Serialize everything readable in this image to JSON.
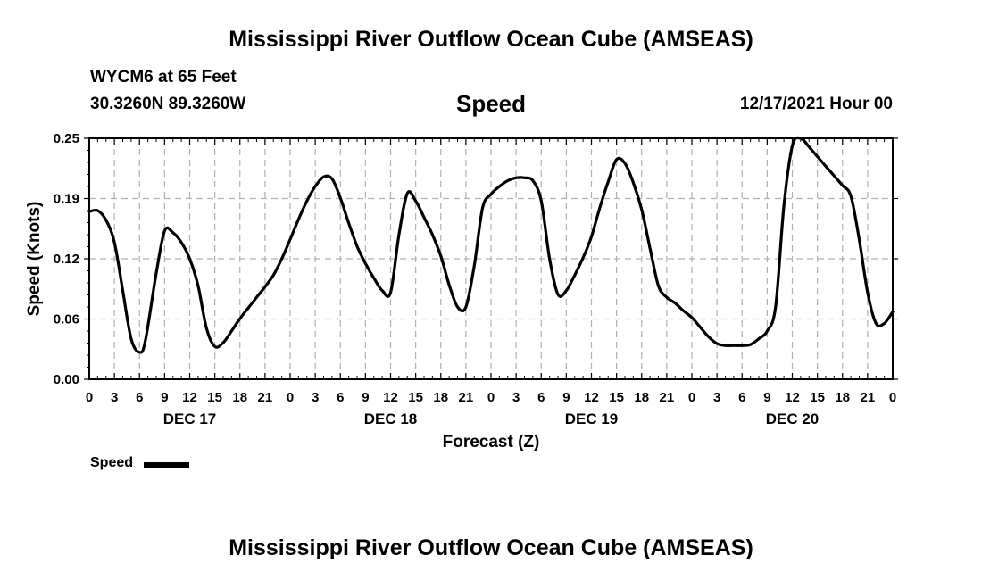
{
  "header": {
    "title": "Mississippi River Outflow Ocean Cube (AMSEAS)",
    "station": "WYCM6 at 65 Feet",
    "coords": "30.3260N  89.3260W",
    "panel_title": "Speed",
    "run_time": "12/17/2021 Hour 00"
  },
  "footer": {
    "title": "Mississippi River Outflow Ocean Cube (AMSEAS)"
  },
  "legend": {
    "label": "Speed",
    "color": "#000000"
  },
  "chart_data": {
    "type": "line",
    "ylabel": "Speed (Knots)",
    "xlabel": "Forecast (Z)",
    "ylim": [
      0,
      0.25
    ],
    "yticks": [
      "0.00",
      "0.06",
      "0.12",
      "0.19",
      "0.25"
    ],
    "xlim_hours": [
      0,
      96
    ],
    "xtick_labels": [
      "0",
      "3",
      "6",
      "9",
      "12",
      "15",
      "18",
      "21",
      "0",
      "3",
      "6",
      "9",
      "12",
      "15",
      "18",
      "21",
      "0",
      "3",
      "6",
      "9",
      "12",
      "15",
      "18",
      "21",
      "0",
      "3",
      "6",
      "9",
      "12",
      "15",
      "18",
      "21",
      "0"
    ],
    "day_labels": [
      {
        "label": "DEC 17",
        "hour": 12
      },
      {
        "label": "DEC 18",
        "hour": 36
      },
      {
        "label": "DEC 19",
        "hour": 60
      },
      {
        "label": "DEC 20",
        "hour": 84
      }
    ],
    "grid": true,
    "line_color": "#000000",
    "series": [
      {
        "name": "Speed",
        "x": [
          0,
          1,
          2,
          3,
          4,
          5,
          6,
          6.7,
          8,
          9,
          10,
          11,
          12,
          13,
          14,
          15,
          16,
          17,
          18,
          19,
          20,
          21,
          22,
          23,
          24,
          25,
          26,
          27,
          28,
          29,
          30,
          31,
          32,
          33,
          34,
          35,
          36,
          37,
          38,
          39,
          40,
          41,
          42,
          43,
          44,
          45,
          46,
          47,
          48,
          49,
          50,
          51,
          52,
          53,
          54,
          55,
          56,
          57,
          58,
          59,
          60,
          61,
          62,
          63,
          64,
          65,
          66,
          67,
          68,
          69,
          70,
          71,
          72,
          73,
          74,
          75,
          76,
          77,
          78,
          79,
          80,
          81,
          82,
          83,
          84,
          85,
          86,
          87,
          88,
          89,
          90,
          91,
          92,
          93,
          94,
          95,
          96
        ],
        "y": [
          0.174,
          0.175,
          0.165,
          0.142,
          0.092,
          0.042,
          0.028,
          0.04,
          0.11,
          0.154,
          0.152,
          0.142,
          0.125,
          0.097,
          0.053,
          0.034,
          0.038,
          0.05,
          0.063,
          0.074,
          0.085,
          0.096,
          0.108,
          0.125,
          0.145,
          0.166,
          0.185,
          0.2,
          0.21,
          0.208,
          0.188,
          0.162,
          0.138,
          0.12,
          0.105,
          0.092,
          0.09,
          0.15,
          0.193,
          0.185,
          0.168,
          0.15,
          0.128,
          0.098,
          0.075,
          0.075,
          0.118,
          0.178,
          0.192,
          0.2,
          0.206,
          0.209,
          0.209,
          0.206,
          0.185,
          0.125,
          0.088,
          0.092,
          0.108,
          0.126,
          0.148,
          0.178,
          0.205,
          0.228,
          0.224,
          0.204,
          0.176,
          0.136,
          0.097,
          0.085,
          0.079,
          0.071,
          0.064,
          0.054,
          0.044,
          0.037,
          0.035,
          0.035,
          0.035,
          0.036,
          0.042,
          0.05,
          0.075,
          0.18,
          0.242,
          0.25,
          0.241,
          0.231,
          0.221,
          0.211,
          0.201,
          0.19,
          0.145,
          0.09,
          0.058,
          0.058,
          0.07
        ]
      }
    ]
  }
}
